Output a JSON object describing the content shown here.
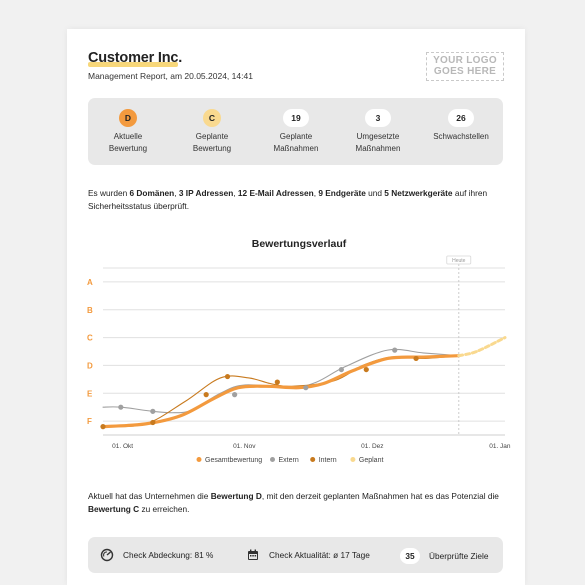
{
  "header": {
    "company": "Customer Inc.",
    "subtitle": "Management Report, am 20.05.2024, 14:41",
    "logo_line1": "YOUR LOGO",
    "logo_line2": "GOES HERE"
  },
  "stats": [
    {
      "value": "D",
      "label1": "Aktuelle",
      "label2": "Bewertung",
      "style": "grade-d"
    },
    {
      "value": "C",
      "label1": "Geplante",
      "label2": "Bewertung",
      "style": "grade-c"
    },
    {
      "value": "19",
      "label1": "Geplante",
      "label2": "Maßnahmen",
      "style": "plain"
    },
    {
      "value": "3",
      "label1": "Umgesetzte",
      "label2": "Maßnahmen",
      "style": "plain"
    },
    {
      "value": "26",
      "label1": "Schwachstellen",
      "label2": "",
      "style": "plain"
    }
  ],
  "intro": {
    "t1": "Es wurden ",
    "b1": "6 Domänen",
    "t2": ", ",
    "b2": "3 IP Adressen",
    "t3": ", ",
    "b3": "12 E-Mail Adressen",
    "t4": ", ",
    "b4": "9 Endgeräte",
    "t5": " und ",
    "b5": "5 Netzwerkgeräte",
    "t6": " auf ihren Sicherheitsstatus überprüft."
  },
  "chart_data": {
    "type": "line",
    "title": "Bewertungsverlauf",
    "today_label": "Heute",
    "y_categories": [
      "A",
      "B",
      "C",
      "D",
      "E",
      "F"
    ],
    "x_ticks": [
      "01. Okt",
      "01. Nov",
      "01. Dez",
      "01. Jan"
    ],
    "y_scale": "grade position, 0 = F, 5 = A",
    "series": [
      {
        "name": "Gesamtbewertung",
        "color": "#f39a3e",
        "points": [
          [
            0.0,
            -0.2
          ],
          [
            0.12,
            -0.1
          ],
          [
            0.22,
            0.2
          ],
          [
            0.31,
            0.8
          ],
          [
            0.38,
            1.2
          ],
          [
            0.46,
            1.25
          ],
          [
            0.55,
            1.2
          ],
          [
            0.62,
            1.35
          ],
          [
            0.7,
            1.8
          ],
          [
            0.8,
            2.25
          ],
          [
            0.9,
            2.3
          ],
          [
            1.0,
            2.35
          ]
        ]
      },
      {
        "name": "Extern",
        "color": "#a0a0a0",
        "points": [
          [
            0.0,
            0.5
          ],
          [
            0.05,
            0.5
          ],
          [
            0.14,
            0.35
          ],
          [
            0.2,
            0.3
          ],
          [
            0.25,
            0.4
          ],
          [
            0.33,
            1.0
          ],
          [
            0.4,
            1.3
          ],
          [
            0.53,
            1.2
          ],
          [
            0.6,
            1.4
          ],
          [
            0.68,
            1.95
          ],
          [
            0.8,
            2.55
          ],
          [
            0.9,
            2.45
          ],
          [
            1.0,
            2.35
          ]
        ]
      },
      {
        "name": "Intern",
        "color": "#c87a1e",
        "points": [
          [
            0.0,
            -0.2
          ],
          [
            0.12,
            -0.1
          ],
          [
            0.23,
            0.7
          ],
          [
            0.33,
            1.55
          ],
          [
            0.41,
            1.55
          ],
          [
            0.47,
            1.35
          ],
          [
            0.53,
            1.25
          ],
          [
            0.65,
            1.45
          ],
          [
            0.73,
            2.0
          ],
          [
            0.81,
            2.3
          ],
          [
            0.9,
            2.25
          ],
          [
            1.0,
            2.35
          ]
        ]
      },
      {
        "name": "Geplant",
        "color": "#f9d98f",
        "points": [
          [
            1.0,
            2.35
          ],
          [
            1.05,
            2.5
          ],
          [
            1.13,
            3.0
          ]
        ]
      }
    ],
    "markers": {
      "Extern": [
        [
          0.05,
          0.5
        ],
        [
          0.14,
          0.35
        ],
        [
          0.37,
          0.95
        ],
        [
          0.57,
          1.2
        ],
        [
          0.67,
          1.85
        ],
        [
          0.82,
          2.55
        ]
      ],
      "Intern": [
        [
          0.0,
          -0.2
        ],
        [
          0.14,
          -0.05
        ],
        [
          0.29,
          0.95
        ],
        [
          0.35,
          1.6
        ],
        [
          0.49,
          1.4
        ],
        [
          0.74,
          1.85
        ],
        [
          0.88,
          2.25
        ]
      ]
    },
    "legend": [
      "Gesamtbewertung",
      "Extern",
      "Intern",
      "Geplant"
    ],
    "legend_placement": "bottom"
  },
  "outro": {
    "t1": "Aktuell hat das Unternehmen die ",
    "b1": "Bewertung D",
    "t2": ", mit den derzeit geplanten Maßnahmen hat es das Potenzial die ",
    "b2": "Bewertung C",
    "t3": " zu erreichen."
  },
  "bottom": {
    "coverage_label": "Check Abdeckung: 81 %",
    "coverage_icon": "gauge-icon",
    "actuality_label": "Check Aktualität: ø 17 Tage",
    "actuality_icon": "calendar-icon",
    "targets_count": "35",
    "targets_label": "Überprüfte Ziele"
  }
}
